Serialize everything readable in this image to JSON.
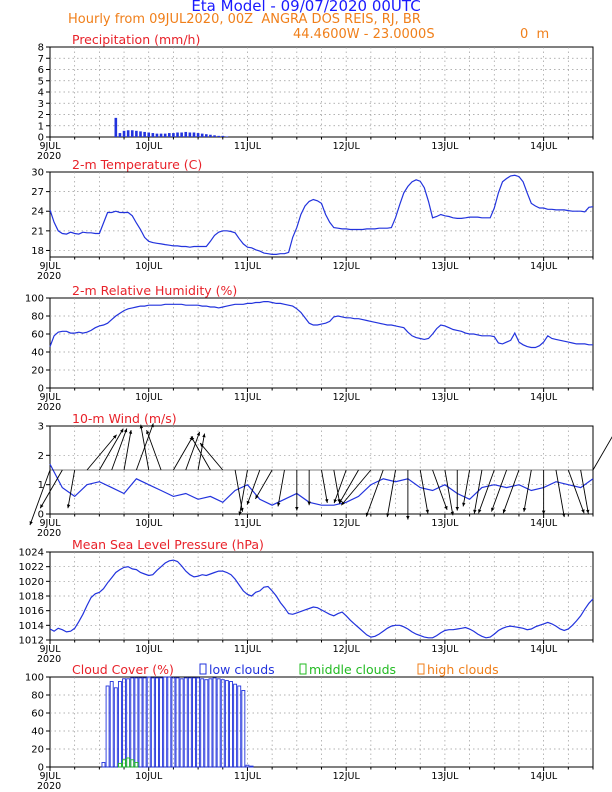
{
  "header": {
    "title": "Eta Model - 09/07/2020 00UTC",
    "subtitle": "Hourly from 09JUL2020, 00Z  ANGRA DOS REIS, RJ, BR",
    "location": "44.4600W - 23.0000S",
    "elevation": "0  m"
  },
  "colors": {
    "title": "#1a1aff",
    "subtitle": "#f07f1a",
    "panel_title": "#e8222a",
    "series": "#2233dd",
    "low": "#2233dd",
    "middle": "#22bb22",
    "high": "#f07f1a",
    "wind_arrow": "#000000",
    "grid": "#999999"
  },
  "time_axis": {
    "start": "09JUL2020 00Z",
    "unit": "hours",
    "range": [
      0,
      132
    ],
    "tick_labels": [
      "9JUL",
      "10JUL",
      "11JUL",
      "12JUL",
      "13JUL",
      "14JUL"
    ],
    "year_label": "2020"
  },
  "chart_data": [
    {
      "type": "bar",
      "title": "Precipitation (mm/h)",
      "ylim": [
        0,
        8
      ],
      "yticks": [
        "0",
        "1",
        "2",
        "3",
        "4",
        "5",
        "6",
        "7",
        "8"
      ],
      "x": [
        16,
        17,
        18,
        19,
        20,
        21,
        22,
        23,
        24,
        25,
        26,
        27,
        28,
        29,
        30,
        31,
        32,
        33,
        34,
        35,
        36,
        37,
        38,
        39,
        40,
        41,
        42,
        43
      ],
      "values": [
        1.7,
        0.35,
        0.55,
        0.6,
        0.6,
        0.55,
        0.5,
        0.45,
        0.4,
        0.35,
        0.3,
        0.3,
        0.3,
        0.35,
        0.35,
        0.4,
        0.4,
        0.45,
        0.4,
        0.4,
        0.35,
        0.3,
        0.25,
        0.2,
        0.15,
        0.1,
        0.1,
        0.05
      ]
    },
    {
      "type": "line",
      "title": "2-m Temperature (C)",
      "ylim": [
        17,
        30
      ],
      "yticks": [
        "18",
        "21",
        "24",
        "27",
        "30"
      ],
      "x": [
        0,
        1,
        2,
        3,
        4,
        5,
        6,
        7,
        8,
        9,
        10,
        11,
        12,
        13,
        14,
        15,
        16,
        17,
        18,
        19,
        20,
        21,
        22,
        23,
        24,
        25,
        26,
        27,
        28,
        29,
        30,
        31,
        32,
        33,
        34,
        35,
        36,
        37,
        38,
        39,
        40,
        41,
        42,
        43,
        44,
        45,
        46,
        47,
        48,
        49,
        50,
        51,
        52,
        53,
        54,
        55,
        56,
        57,
        58,
        59,
        60,
        61,
        62,
        63,
        64,
        65,
        66,
        67,
        68,
        69,
        70,
        71,
        72,
        73,
        74,
        75,
        76,
        77,
        78,
        79,
        80,
        81,
        82,
        83,
        84,
        85,
        86,
        87,
        88,
        89,
        90,
        91,
        92,
        93,
        94,
        95,
        96,
        97,
        98,
        99,
        100,
        101,
        102,
        103,
        104,
        105,
        106,
        107,
        108,
        109,
        110,
        111,
        112,
        113,
        114,
        115,
        116,
        117,
        118,
        119,
        120,
        121,
        122,
        123,
        124,
        125,
        126,
        127,
        128,
        129,
        130,
        131,
        132
      ],
      "values": [
        24.2,
        22.3,
        21.0,
        20.6,
        20.5,
        20.8,
        20.6,
        20.5,
        20.8,
        20.7,
        20.7,
        20.6,
        20.6,
        22.2,
        23.8,
        23.8,
        24.0,
        23.8,
        23.8,
        23.8,
        23.3,
        22.2,
        21.2,
        20.0,
        19.4,
        19.2,
        19.1,
        19.0,
        18.9,
        18.8,
        18.7,
        18.7,
        18.6,
        18.6,
        18.5,
        18.6,
        18.6,
        18.6,
        18.6,
        19.4,
        20.3,
        20.8,
        21.0,
        21.0,
        20.9,
        20.7,
        19.8,
        19.0,
        18.5,
        18.4,
        18.1,
        17.9,
        17.6,
        17.5,
        17.4,
        17.4,
        17.5,
        17.5,
        17.7,
        20.0,
        21.5,
        23.5,
        24.8,
        25.5,
        25.8,
        25.6,
        25.2,
        23.5,
        22.3,
        21.5,
        21.4,
        21.3,
        21.3,
        21.2,
        21.2,
        21.2,
        21.2,
        21.3,
        21.3,
        21.3,
        21.4,
        21.4,
        21.4,
        21.5,
        23.0,
        25.0,
        26.8,
        27.8,
        28.5,
        28.8,
        28.6,
        27.6,
        25.5,
        23.0,
        23.2,
        23.5,
        23.3,
        23.2,
        23.0,
        22.9,
        22.9,
        23.0,
        23.1,
        23.1,
        23.1,
        23.0,
        23.0,
        23.0,
        24.5,
        26.8,
        28.5,
        29.0,
        29.4,
        29.5,
        29.3,
        28.5,
        26.8,
        25.2,
        24.8,
        24.5,
        24.5,
        24.3,
        24.3,
        24.2,
        24.2,
        24.2,
        24.1,
        24.0,
        24.0,
        24.0,
        23.9,
        24.6,
        24.7
      ]
    },
    {
      "type": "line",
      "title": "2-m Relative Humidity (%)",
      "ylim": [
        0,
        100
      ],
      "yticks": [
        "0",
        "20",
        "40",
        "60",
        "80",
        "100"
      ],
      "x": [
        0,
        1,
        2,
        3,
        4,
        5,
        6,
        7,
        8,
        9,
        10,
        11,
        12,
        13,
        14,
        15,
        16,
        17,
        18,
        19,
        20,
        21,
        22,
        23,
        24,
        25,
        26,
        27,
        28,
        29,
        30,
        31,
        32,
        33,
        34,
        35,
        36,
        37,
        38,
        39,
        40,
        41,
        42,
        43,
        44,
        45,
        46,
        47,
        48,
        49,
        50,
        51,
        52,
        53,
        54,
        55,
        56,
        57,
        58,
        59,
        60,
        61,
        62,
        63,
        64,
        65,
        66,
        67,
        68,
        69,
        70,
        71,
        72,
        73,
        74,
        75,
        76,
        77,
        78,
        79,
        80,
        81,
        82,
        83,
        84,
        85,
        86,
        87,
        88,
        89,
        90,
        91,
        92,
        93,
        94,
        95,
        96,
        97,
        98,
        99,
        100,
        101,
        102,
        103,
        104,
        105,
        106,
        107,
        108,
        109,
        110,
        111,
        112,
        113,
        114,
        115,
        116,
        117,
        118,
        119,
        120,
        121,
        122,
        123,
        124,
        125,
        126,
        127,
        128,
        129,
        130,
        131,
        132
      ],
      "values": [
        46,
        58,
        62,
        63,
        63,
        61,
        61,
        62,
        61,
        62,
        64,
        67,
        69,
        70,
        72,
        76,
        80,
        83,
        86,
        88,
        89,
        90,
        91,
        91,
        92,
        92,
        92,
        92,
        93,
        93,
        93,
        93,
        93,
        92,
        92,
        92,
        92,
        91,
        91,
        90,
        90,
        89,
        90,
        91,
        92,
        93,
        93,
        93,
        94,
        94,
        95,
        95,
        96,
        96,
        95,
        94,
        94,
        93,
        92,
        91,
        88,
        84,
        78,
        72,
        70,
        70,
        71,
        72,
        74,
        79,
        80,
        79,
        78,
        78,
        77,
        77,
        76,
        75,
        74,
        73,
        72,
        71,
        70,
        70,
        69,
        68,
        67,
        62,
        58,
        56,
        55,
        54,
        55,
        60,
        66,
        70,
        69,
        67,
        65,
        64,
        63,
        61,
        60,
        60,
        59,
        58,
        58,
        58,
        57,
        50,
        49,
        51,
        53,
        61,
        51,
        48,
        46,
        45,
        45,
        47,
        51,
        58,
        55,
        54,
        53,
        52,
        51,
        50,
        49,
        49,
        49,
        48,
        48
      ]
    },
    {
      "type": "line",
      "title": "10-m Wind (m/s)",
      "ylim": [
        0,
        3
      ],
      "yticks": [
        "0",
        "1",
        "2",
        "3"
      ],
      "arrow_baseline": 1.5,
      "x": [
        0,
        3,
        6,
        9,
        12,
        15,
        18,
        21,
        24,
        27,
        30,
        33,
        36,
        39,
        42,
        45,
        48,
        51,
        54,
        57,
        60,
        63,
        66,
        69,
        72,
        75,
        78,
        81,
        84,
        87,
        90,
        93,
        96,
        99,
        102,
        105,
        108,
        111,
        114,
        117,
        120,
        123,
        126,
        129,
        132
      ],
      "values": [
        1.7,
        0.9,
        0.6,
        1.0,
        1.1,
        0.9,
        0.7,
        1.2,
        1.0,
        0.8,
        0.6,
        0.7,
        0.5,
        0.6,
        0.4,
        0.8,
        1.0,
        0.5,
        0.3,
        0.5,
        0.7,
        0.4,
        0.3,
        0.3,
        0.4,
        0.6,
        1.0,
        1.2,
        1.1,
        1.2,
        0.9,
        0.8,
        1.0,
        0.7,
        0.5,
        0.9,
        1.0,
        0.9,
        1.0,
        0.8,
        0.9,
        1.1,
        1.0,
        0.9,
        1.2
      ],
      "directions_deg": [
        200,
        210,
        190,
        40,
        30,
        20,
        10,
        20,
        350,
        340,
        30,
        20,
        10,
        330,
        320,
        170,
        190,
        200,
        210,
        190,
        180,
        180,
        170,
        170,
        200,
        210,
        220,
        200,
        190,
        180,
        170,
        160,
        170,
        180,
        190,
        190,
        200,
        200,
        200,
        190,
        180,
        170,
        160,
        170,
        30
      ]
    },
    {
      "type": "line",
      "title": "Mean Sea Level Pressure (hPa)",
      "ylim": [
        1012,
        1024
      ],
      "yticks": [
        "1012",
        "1014",
        "1016",
        "1018",
        "1020",
        "1022",
        "1024"
      ],
      "x": [
        0,
        1,
        2,
        3,
        4,
        5,
        6,
        7,
        8,
        9,
        10,
        11,
        12,
        13,
        14,
        15,
        16,
        17,
        18,
        19,
        20,
        21,
        22,
        23,
        24,
        25,
        26,
        27,
        28,
        29,
        30,
        31,
        32,
        33,
        34,
        35,
        36,
        37,
        38,
        39,
        40,
        41,
        42,
        43,
        44,
        45,
        46,
        47,
        48,
        49,
        50,
        51,
        52,
        53,
        54,
        55,
        56,
        57,
        58,
        59,
        60,
        61,
        62,
        63,
        64,
        65,
        66,
        67,
        68,
        69,
        70,
        71,
        72,
        73,
        74,
        75,
        76,
        77,
        78,
        79,
        80,
        81,
        82,
        83,
        84,
        85,
        86,
        87,
        88,
        89,
        90,
        91,
        92,
        93,
        94,
        95,
        96,
        97,
        98,
        99,
        100,
        101,
        102,
        103,
        104,
        105,
        106,
        107,
        108,
        109,
        110,
        111,
        112,
        113,
        114,
        115,
        116,
        117,
        118,
        119,
        120,
        121,
        122,
        123,
        124,
        125,
        126,
        127,
        128,
        129,
        130,
        131,
        132
      ],
      "values": [
        1013.5,
        1013.2,
        1013.6,
        1013.4,
        1013.1,
        1013.2,
        1013.6,
        1014.5,
        1015.5,
        1016.7,
        1017.8,
        1018.3,
        1018.5,
        1019.0,
        1019.8,
        1020.5,
        1021.2,
        1021.6,
        1021.9,
        1022.0,
        1021.7,
        1021.6,
        1021.2,
        1021.0,
        1020.8,
        1020.9,
        1021.5,
        1022.0,
        1022.5,
        1022.8,
        1022.9,
        1022.7,
        1022.1,
        1021.4,
        1020.9,
        1020.6,
        1020.7,
        1020.9,
        1020.8,
        1021.0,
        1021.2,
        1021.4,
        1021.4,
        1021.2,
        1020.9,
        1020.3,
        1019.5,
        1018.7,
        1018.2,
        1018.0,
        1018.5,
        1018.7,
        1019.2,
        1019.3,
        1018.7,
        1018.0,
        1017.1,
        1016.4,
        1015.6,
        1015.5,
        1015.7,
        1015.9,
        1016.1,
        1016.3,
        1016.5,
        1016.4,
        1016.1,
        1015.8,
        1015.5,
        1015.3,
        1015.6,
        1015.8,
        1015.3,
        1014.7,
        1014.2,
        1013.7,
        1013.2,
        1012.7,
        1012.4,
        1012.5,
        1012.8,
        1013.2,
        1013.6,
        1013.9,
        1014.0,
        1014.0,
        1013.8,
        1013.5,
        1013.1,
        1012.8,
        1012.6,
        1012.4,
        1012.3,
        1012.3,
        1012.6,
        1013.0,
        1013.3,
        1013.4,
        1013.4,
        1013.5,
        1013.6,
        1013.7,
        1013.5,
        1013.2,
        1012.8,
        1012.5,
        1012.3,
        1012.4,
        1012.8,
        1013.3,
        1013.6,
        1013.8,
        1013.9,
        1013.8,
        1013.7,
        1013.6,
        1013.4,
        1013.5,
        1013.8,
        1014.0,
        1014.2,
        1014.4,
        1014.2,
        1013.9,
        1013.5,
        1013.3,
        1013.5,
        1014.0,
        1014.6,
        1015.3,
        1016.2,
        1017.0,
        1017.6
      ]
    },
    {
      "type": "bar",
      "title": "Cloud Cover (%)",
      "ylim": [
        0,
        100
      ],
      "yticks": [
        "0",
        "20",
        "40",
        "60",
        "80",
        "100"
      ],
      "legend": [
        "low clouds",
        "middle clouds",
        "high clouds"
      ],
      "x": [
        13,
        14,
        15,
        16,
        17,
        18,
        19,
        20,
        21,
        22,
        23,
        24,
        25,
        26,
        27,
        28,
        29,
        30,
        31,
        32,
        33,
        34,
        35,
        36,
        37,
        38,
        39,
        40,
        41,
        42,
        43,
        44,
        45,
        46,
        47,
        48,
        49
      ],
      "series": [
        {
          "name": "low clouds",
          "values": [
            5,
            90,
            95,
            88,
            95,
            98,
            98,
            99,
            99,
            99,
            99,
            100,
            99,
            99,
            99,
            100,
            100,
            99,
            99,
            98,
            99,
            99,
            99,
            99,
            98,
            97,
            98,
            99,
            98,
            97,
            96,
            95,
            92,
            90,
            85,
            2,
            1
          ]
        },
        {
          "name": "middle clouds",
          "values": [
            0,
            0,
            0,
            0,
            4,
            8,
            10,
            8,
            5,
            0,
            0,
            0,
            0,
            0,
            0,
            0,
            0,
            0,
            0,
            0,
            0,
            0,
            0,
            0,
            0,
            0,
            0,
            0,
            0,
            0,
            0,
            0,
            0,
            0,
            0,
            0,
            0
          ]
        },
        {
          "name": "high clouds",
          "values": [
            0,
            0,
            0,
            0,
            0,
            0,
            0,
            0,
            0,
            0,
            0,
            0,
            0,
            0,
            0,
            0,
            0,
            0,
            0,
            0,
            0,
            0,
            0,
            0,
            0,
            0,
            0,
            0,
            0,
            0,
            0,
            0,
            0,
            0,
            0,
            0,
            0
          ]
        }
      ]
    }
  ]
}
